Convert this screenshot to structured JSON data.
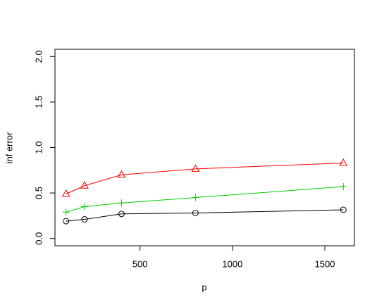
{
  "chart_data": {
    "type": "line",
    "xlabel": "p",
    "ylabel": "inf error",
    "x": [
      100,
      200,
      400,
      800,
      1600
    ],
    "series": [
      {
        "color": "#000000",
        "marker": "circle",
        "values": [
          0.19,
          0.21,
          0.27,
          0.28,
          0.315
        ]
      },
      {
        "color": "#00cc00",
        "marker": "plus",
        "values": [
          0.29,
          0.35,
          0.39,
          0.45,
          0.57
        ]
      },
      {
        "color": "#ff0000",
        "marker": "triangle",
        "values": [
          0.49,
          0.58,
          0.7,
          0.765,
          0.83
        ]
      }
    ],
    "xlim": [
      40,
      1660
    ],
    "ylim": [
      -0.08,
      2.08
    ],
    "xticks": [
      500,
      1000,
      1500
    ],
    "yticks": [
      {
        "value": 0,
        "label": "0.0"
      },
      {
        "value": 0.5,
        "label": "0.5"
      },
      {
        "value": 1,
        "label": "1.0"
      },
      {
        "value": 1.5,
        "label": "1.5"
      },
      {
        "value": 2,
        "label": "2.0"
      }
    ]
  }
}
